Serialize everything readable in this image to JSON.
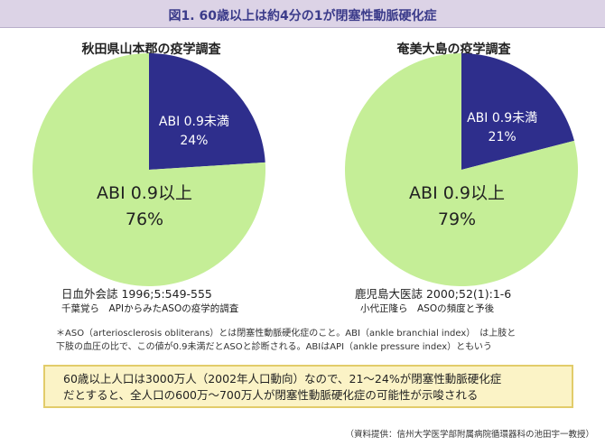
{
  "header": {
    "title": "図1. 60歳以上は約4分の1が閉塞性動脈硬化症"
  },
  "chart_data": [
    {
      "type": "pie",
      "title": "秋田県山本郡の疫学調査",
      "slices": [
        {
          "label": "ABI 0.9未満",
          "value": 24,
          "display": "24%",
          "color": "#2e2e8c"
        },
        {
          "label": "ABI 0.9以上",
          "value": 76,
          "display": "76%",
          "color": "#c5ee97"
        }
      ],
      "source": "日血外会誌 1996;5:549-555",
      "source_sub": "千葉覚ら　APIからみたASOの疫学的調査"
    },
    {
      "type": "pie",
      "title": "奄美大島の疫学調査",
      "slices": [
        {
          "label": "ABI 0.9未満",
          "value": 21,
          "display": "21%",
          "color": "#2e2e8c"
        },
        {
          "label": "ABI 0.9以上",
          "value": 79,
          "display": "79%",
          "color": "#c5ee97"
        }
      ],
      "source": "鹿児島大医誌 2000;52(1):1-6",
      "source_sub": "小代正隆ら　ASOの頻度と予後"
    }
  ],
  "note": {
    "line1": "＊ASO（arteriosclerosis obliterans）とは閉塞性動脈硬化症のこと。ABI（ankle branchial index）　は上肢と",
    "line2": "下肢の血圧の比で、この値が0.9未満だとASOと診断される。ABIはAPI（ankle pressure index）ともいう"
  },
  "summary": {
    "line1": "60歳以上人口は3000万人（2002年人口動向）なので、21〜24%が閉塞性動脈硬化症",
    "line2": "だとすると、全人口の600万〜700万人が閉塞性動脈硬化症の可能性が示唆される"
  },
  "credit": "（資料提供：信州大学医学部附属病院循環器科の池田宇一教授）"
}
